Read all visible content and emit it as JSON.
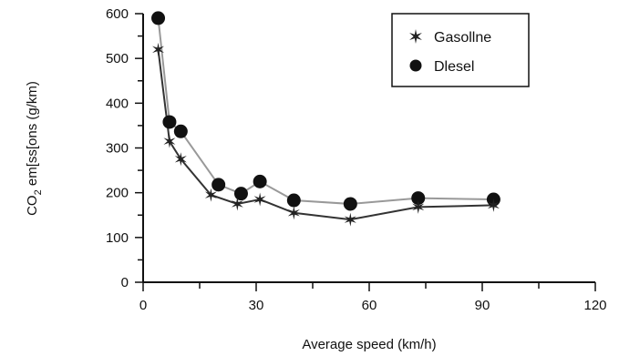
{
  "chart_data": {
    "type": "line",
    "xlabel": "Average speed (km/h)",
    "ylabel": {
      "prefix": "CO",
      "sub": "2",
      "suffix": " em[ss[ons (g/km)"
    },
    "xlim": [
      0,
      120
    ],
    "ylim": [
      0,
      600
    ],
    "xticks": [
      "0",
      "30",
      "60",
      "90",
      "120"
    ],
    "yticks": [
      "0",
      "100",
      "200",
      "300",
      "400",
      "500",
      "600"
    ],
    "grid": false,
    "legend_position": "top-right",
    "series": [
      {
        "name": "Gasollne",
        "marker": "star",
        "color": "#333333",
        "x": [
          4,
          7,
          10,
          18,
          25,
          31,
          40,
          55,
          73,
          93
        ],
        "y": [
          520,
          315,
          275,
          195,
          175,
          185,
          155,
          140,
          168,
          172
        ]
      },
      {
        "name": "Dlesel",
        "marker": "circle",
        "color": "#999999",
        "x": [
          4,
          7,
          10,
          20,
          26,
          31,
          40,
          55,
          73,
          93
        ],
        "y": [
          590,
          358,
          337,
          218,
          198,
          225,
          183,
          175,
          188,
          185
        ]
      }
    ]
  }
}
